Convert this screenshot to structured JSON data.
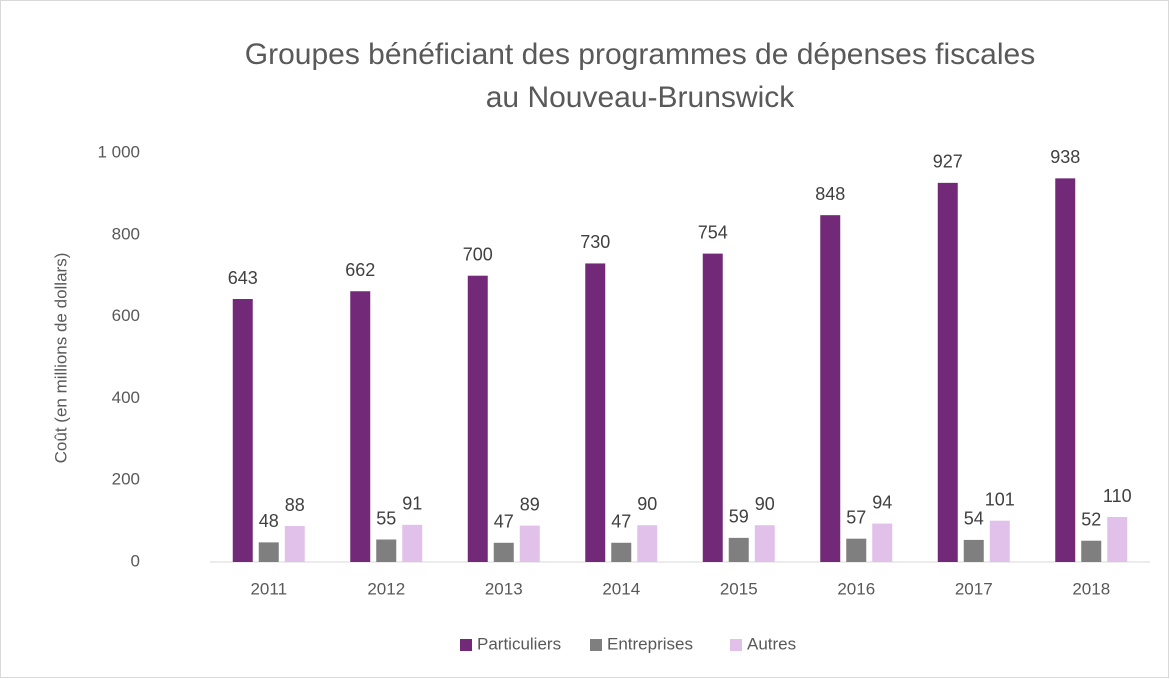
{
  "chart_data": {
    "type": "bar",
    "title": [
      "Groupes bénéficiant des programmes de dépenses fiscales",
      "au Nouveau-Brunswick"
    ],
    "y_label": "Coût (en millions de dollars)",
    "categories": [
      "2011",
      "2012",
      "2013",
      "2014",
      "2015",
      "2016",
      "2017",
      "2018"
    ],
    "series": [
      {
        "name": "Particuliers",
        "color": "#722a78",
        "values": [
          643,
          662,
          700,
          730,
          754,
          848,
          927,
          938
        ]
      },
      {
        "name": "Entreprises",
        "color": "#7f7f7f",
        "values": [
          48,
          55,
          47,
          47,
          59,
          57,
          54,
          52
        ]
      },
      {
        "name": "Autres",
        "color": "#e1c1e9",
        "values": [
          88,
          91,
          89,
          90,
          90,
          94,
          101,
          110
        ]
      }
    ],
    "ylim": [
      0,
      1000
    ],
    "yticks": [
      0,
      200,
      400,
      600,
      800,
      {
        "value": 1000,
        "label": "1 000"
      }
    ],
    "grid": false,
    "legend": "bottom"
  }
}
